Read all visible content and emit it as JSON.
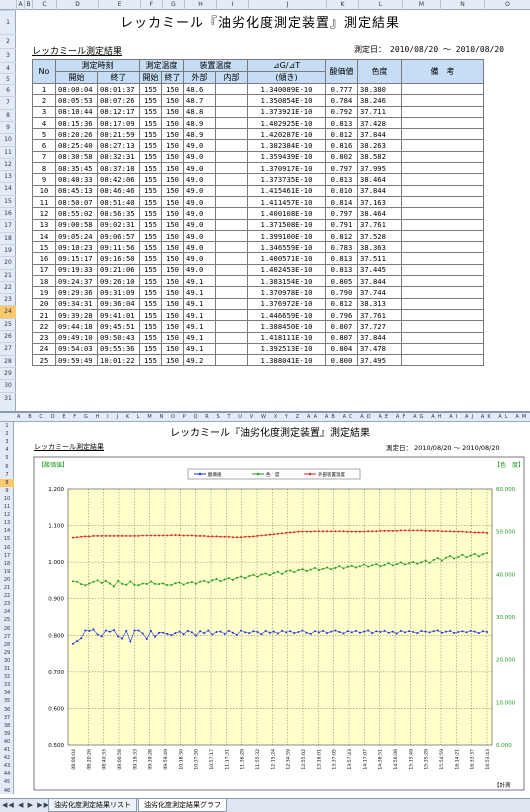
{
  "sheet": {
    "title": "レッカミール『油劣化度測定装置』測定結果",
    "subtitle": "レッカミール測定結果",
    "date_label": "測定日：",
    "date_range": "2010/08/20 ～ 2010/08/20"
  },
  "columns": [
    "A",
    "B",
    "C",
    "D",
    "E",
    "F",
    "G",
    "H",
    "I",
    "J",
    "K",
    "L",
    "M",
    "N",
    "O"
  ],
  "rows": [
    "1",
    "2",
    "3",
    "4",
    "5",
    "6",
    "7",
    "8",
    "9",
    "10",
    "11",
    "12",
    "13",
    "14",
    "15",
    "16",
    "17",
    "18",
    "19",
    "20",
    "21",
    "22",
    "23",
    "24",
    "25",
    "26",
    "27",
    "28",
    "29",
    "30",
    "31"
  ],
  "selected_row": "24",
  "table": {
    "headers": {
      "no": "No",
      "time": "測定時刻",
      "start": "開始",
      "end": "終了",
      "meas_temp": "測定温度",
      "t_start": "開始",
      "t_end": "終了",
      "dev_temp": "装置温度",
      "outer": "外部",
      "inner": "内部",
      "dg": "⊿G/⊿T",
      "slope": "(傾き)",
      "acid": "酸価値",
      "color": "色度",
      "note": "備　考"
    },
    "rows": [
      [
        "1",
        "08:00:04",
        "08:01:37",
        "155",
        "150",
        "48.6",
        "",
        "1.340089E-10",
        "0.777",
        "38.380"
      ],
      [
        "2",
        "08:05:53",
        "08:07:26",
        "155",
        "150",
        "48.7",
        "",
        "1.350854E-10",
        "0.784",
        "38.246"
      ],
      [
        "3",
        "08:10:44",
        "08:12:17",
        "155",
        "150",
        "48.8",
        "",
        "1.373921E-10",
        "0.792",
        "37.711"
      ],
      [
        "4",
        "08:15:36",
        "08:17:09",
        "155",
        "150",
        "48.9",
        "",
        "1.402925E-10",
        "0.813",
        "37.428"
      ],
      [
        "5",
        "08:20:26",
        "08:21:59",
        "155",
        "150",
        "48.9",
        "",
        "1.420287E-10",
        "0.812",
        "37.844"
      ],
      [
        "6",
        "08:25:40",
        "08:27:13",
        "155",
        "150",
        "49.0",
        "",
        "1.382384E-10",
        "0.816",
        "38.263"
      ],
      [
        "7",
        "08:30:58",
        "08:32:31",
        "155",
        "150",
        "49.0",
        "",
        "1.359439E-10",
        "0.802",
        "38.582"
      ],
      [
        "8",
        "08:35:45",
        "08:37:18",
        "155",
        "150",
        "49.0",
        "",
        "1.370917E-10",
        "0.797",
        "37.995"
      ],
      [
        "9",
        "08:40:33",
        "08:42:06",
        "155",
        "150",
        "49.0",
        "",
        "1.373735E-10",
        "0.813",
        "38.464"
      ],
      [
        "10",
        "08:45:13",
        "08:46:46",
        "155",
        "150",
        "49.0",
        "",
        "1.415461E-10",
        "0.810",
        "37.844"
      ],
      [
        "11",
        "08:50:07",
        "08:51:40",
        "155",
        "150",
        "49.0",
        "",
        "1.411457E-10",
        "0.814",
        "37.163"
      ],
      [
        "12",
        "08:55:02",
        "08:56:35",
        "155",
        "150",
        "49.0",
        "",
        "1.400108E-10",
        "0.797",
        "38.464"
      ],
      [
        "13",
        "09:00:58",
        "09:02:31",
        "155",
        "150",
        "49.0",
        "",
        "1.371508E-10",
        "0.791",
        "37.761"
      ],
      [
        "14",
        "09:05:24",
        "09:06:57",
        "155",
        "150",
        "49.0",
        "",
        "1.399100E-10",
        "0.812",
        "37.528"
      ],
      [
        "15",
        "09:10:23",
        "09:11:56",
        "155",
        "150",
        "49.0",
        "",
        "1.346559E-10",
        "0.783",
        "38.363"
      ],
      [
        "16",
        "09:15:17",
        "09:16:50",
        "155",
        "150",
        "49.0",
        "",
        "1.400571E-10",
        "0.813",
        "37.511"
      ],
      [
        "17",
        "09:19:33",
        "09:21:06",
        "155",
        "150",
        "49.0",
        "",
        "1.402453E-10",
        "0.813",
        "37.445"
      ],
      [
        "18",
        "09:24:37",
        "09:26:10",
        "155",
        "150",
        "49.1",
        "",
        "1.383154E-10",
        "0.805",
        "37.844"
      ],
      [
        "19",
        "09:29:36",
        "09:31:09",
        "155",
        "150",
        "49.1",
        "",
        "1.370978E-10",
        "0.790",
        "37.744"
      ],
      [
        "20",
        "09:34:31",
        "09:36:04",
        "155",
        "150",
        "49.1",
        "",
        "1.376972E-10",
        "0.812",
        "38.313"
      ],
      [
        "21",
        "09:39:28",
        "09:41:01",
        "155",
        "150",
        "49.1",
        "",
        "1.446659E-10",
        "0.796",
        "37.761"
      ],
      [
        "22",
        "09:44:18",
        "09:45:51",
        "155",
        "150",
        "49.1",
        "",
        "1.388450E-10",
        "0.807",
        "37.727"
      ],
      [
        "23",
        "09:49:10",
        "09:50:43",
        "155",
        "150",
        "49.1",
        "",
        "1.418111E-10",
        "0.807",
        "37.844"
      ],
      [
        "24",
        "09:54:03",
        "09:55:36",
        "155",
        "150",
        "49.1",
        "",
        "1.392513E-10",
        "0.804",
        "37.478"
      ],
      [
        "25",
        "09:59:49",
        "10:01:22",
        "155",
        "150",
        "49.2",
        "",
        "1.388041E-10",
        "0.800",
        "37.495"
      ]
    ]
  },
  "chart_header": {
    "col_letters": "A B C D E F G H I J K L M N O P Q R S T U V W X Y Z AA AB AC AD AE AF AG AH AI AJ AK AL AM AN AO AP AQ AR AS AT AU AV AW AX AY AZ BA",
    "rows": [
      "1",
      "2",
      "3",
      "4",
      "5",
      "6",
      "7",
      "8",
      "9",
      "10",
      "11",
      "12",
      "13",
      "14",
      "15",
      "16",
      "17",
      "18",
      "19",
      "20",
      "21",
      "22",
      "23",
      "24",
      "25",
      "26",
      "27",
      "28",
      "29",
      "30",
      "31",
      "32",
      "33",
      "34",
      "35",
      "36",
      "37",
      "38",
      "39",
      "40",
      "41",
      "42",
      "43",
      "44",
      "45",
      "46"
    ]
  },
  "chart_data": {
    "type": "line",
    "title": "レッカミール『油劣化度測定装置』測定結果",
    "subtitle": "レッカミール測定結果",
    "date_label": "測定日：",
    "date_range": "2010/08/20 ～ 2010/08/20",
    "left_axis_label": "【酸価値】",
    "right_axis_label": "【色　度】",
    "x_axis_label": "【計測",
    "left_ylim": [
      0.5,
      1.2
    ],
    "right_ylim": [
      0,
      60
    ],
    "left_ticks": [
      "1.200",
      "1.100",
      "1.000",
      "0.900",
      "0.800",
      "0.700",
      "0.600",
      "0.500"
    ],
    "right_ticks": [
      "60.000",
      "50.000",
      "40.000",
      "30.000",
      "20.000",
      "10.000",
      "0.000"
    ],
    "x_ticks": [
      "08:00:04",
      "08:20:26",
      "08:40:33",
      "09:00:58",
      "09:19:33",
      "09:39:28",
      "09:59:49",
      "10:18:30",
      "10:37:50",
      "10:57:17",
      "11:17:31",
      "11:36:29",
      "11:55:32",
      "12:15:24",
      "12:34:59",
      "12:55:02",
      "13:16:01",
      "13:37:05",
      "13:57:43",
      "14:17:07",
      "14:36:51",
      "14:56:06",
      "15:15:49",
      "15:35:29",
      "15:54:59",
      "16:14:21",
      "16:33:37",
      "16:53:43"
    ],
    "legend": [
      "酸価値",
      "色　度",
      "外部装置温度"
    ],
    "colors": {
      "acid": "#1f2fe0",
      "color": "#1e9a1e",
      "temp": "#e01f1f",
      "plot_bg": "#ffffcc"
    },
    "series": [
      {
        "name": "酸価値",
        "axis": "left",
        "values": [
          0.777,
          0.784,
          0.792,
          0.813,
          0.812,
          0.816,
          0.802,
          0.797,
          0.813,
          0.81,
          0.814,
          0.797,
          0.791,
          0.812,
          0.783,
          0.813,
          0.813,
          0.805,
          0.79,
          0.812,
          0.796,
          0.807,
          0.807,
          0.804,
          0.8,
          0.806,
          0.81,
          0.803,
          0.812,
          0.808,
          0.799,
          0.811,
          0.806,
          0.813,
          0.802,
          0.809,
          0.81,
          0.804,
          0.812,
          0.807,
          0.801,
          0.813,
          0.808,
          0.806,
          0.811,
          0.809,
          0.803,
          0.812,
          0.807,
          0.81,
          0.805,
          0.812,
          0.808,
          0.811,
          0.806,
          0.809,
          0.813,
          0.807,
          0.804,
          0.811,
          0.808,
          0.812,
          0.806,
          0.81,
          0.813,
          0.809,
          0.805,
          0.811,
          0.808,
          0.812,
          0.807,
          0.81,
          0.813,
          0.806,
          0.811,
          0.809,
          0.812,
          0.807,
          0.81,
          0.805,
          0.812,
          0.808,
          0.811,
          0.809,
          0.806,
          0.812,
          0.81,
          0.808,
          0.811,
          0.813,
          0.807,
          0.81,
          0.812,
          0.806,
          0.809,
          0.811,
          0.808,
          0.812,
          0.81,
          0.806,
          0.811,
          0.809
        ]
      },
      {
        "name": "色　度",
        "axis": "right",
        "values": [
          38.38,
          38.25,
          37.71,
          37.43,
          37.84,
          38.26,
          38.58,
          38.0,
          38.46,
          37.84,
          37.16,
          38.46,
          37.76,
          37.53,
          38.36,
          37.51,
          37.45,
          37.84,
          37.74,
          38.31,
          37.76,
          37.73,
          37.84,
          37.48,
          37.5,
          37.9,
          38.1,
          37.6,
          38.0,
          38.2,
          37.8,
          38.3,
          38.5,
          38.1,
          38.6,
          38.9,
          38.4,
          38.8,
          39.1,
          38.7,
          39.2,
          39.5,
          39.1,
          39.6,
          39.9,
          39.4,
          40.0,
          40.2,
          39.8,
          40.3,
          40.6,
          40.1,
          40.7,
          40.9,
          40.5,
          41.0,
          41.2,
          40.8,
          41.1,
          41.5,
          41.0,
          41.3,
          41.6,
          41.2,
          41.5,
          41.9,
          41.4,
          41.8,
          42.0,
          41.6,
          41.9,
          42.3,
          41.8,
          42.1,
          42.4,
          41.9,
          42.2,
          42.6,
          42.1,
          42.4,
          42.8,
          42.3,
          42.6,
          42.9,
          42.5,
          42.8,
          43.2,
          42.7,
          43.4,
          43.8,
          43.2,
          43.9,
          44.3,
          43.7,
          44.1,
          44.6,
          44.0,
          44.4,
          44.8,
          44.2,
          44.7,
          45.0
        ]
      },
      {
        "name": "外部装置温度",
        "axis": "right",
        "values": [
          48.6,
          48.7,
          48.8,
          48.9,
          48.9,
          49.0,
          49.0,
          49.0,
          49.0,
          49.0,
          49.0,
          49.0,
          49.0,
          49.0,
          49.0,
          49.0,
          49.0,
          49.1,
          49.1,
          49.1,
          49.1,
          49.1,
          49.1,
          49.1,
          49.2,
          49.2,
          49.2,
          49.1,
          49.1,
          49.1,
          49.0,
          49.0,
          49.0,
          48.9,
          48.9,
          48.9,
          48.8,
          48.8,
          48.8,
          48.7,
          48.7,
          48.7,
          48.8,
          48.8,
          48.9,
          49.0,
          49.1,
          49.2,
          49.3,
          49.4,
          49.5,
          49.6,
          49.7,
          49.8,
          49.9,
          50.0,
          50.0,
          50.0,
          50.0,
          50.1,
          50.1,
          50.1,
          50.1,
          50.1,
          50.1,
          50.1,
          50.1,
          50.0,
          50.0,
          50.0,
          50.0,
          50.0,
          50.1,
          50.1,
          50.1,
          50.2,
          50.2,
          50.2,
          50.2,
          50.2,
          50.3,
          50.3,
          50.3,
          50.3,
          50.3,
          50.3,
          50.2,
          50.2,
          50.2,
          50.2,
          50.1,
          50.1,
          50.1,
          50.0,
          50.0,
          50.0,
          49.9,
          49.9,
          49.8,
          49.8,
          49.8,
          49.7
        ]
      }
    ]
  },
  "tabs": {
    "nav": "◀◀ ◀ ▶ ▶▶",
    "list_tab": "油劣化度測定結果リスト",
    "graph_tab": "油劣化度測定結果グラフ"
  }
}
